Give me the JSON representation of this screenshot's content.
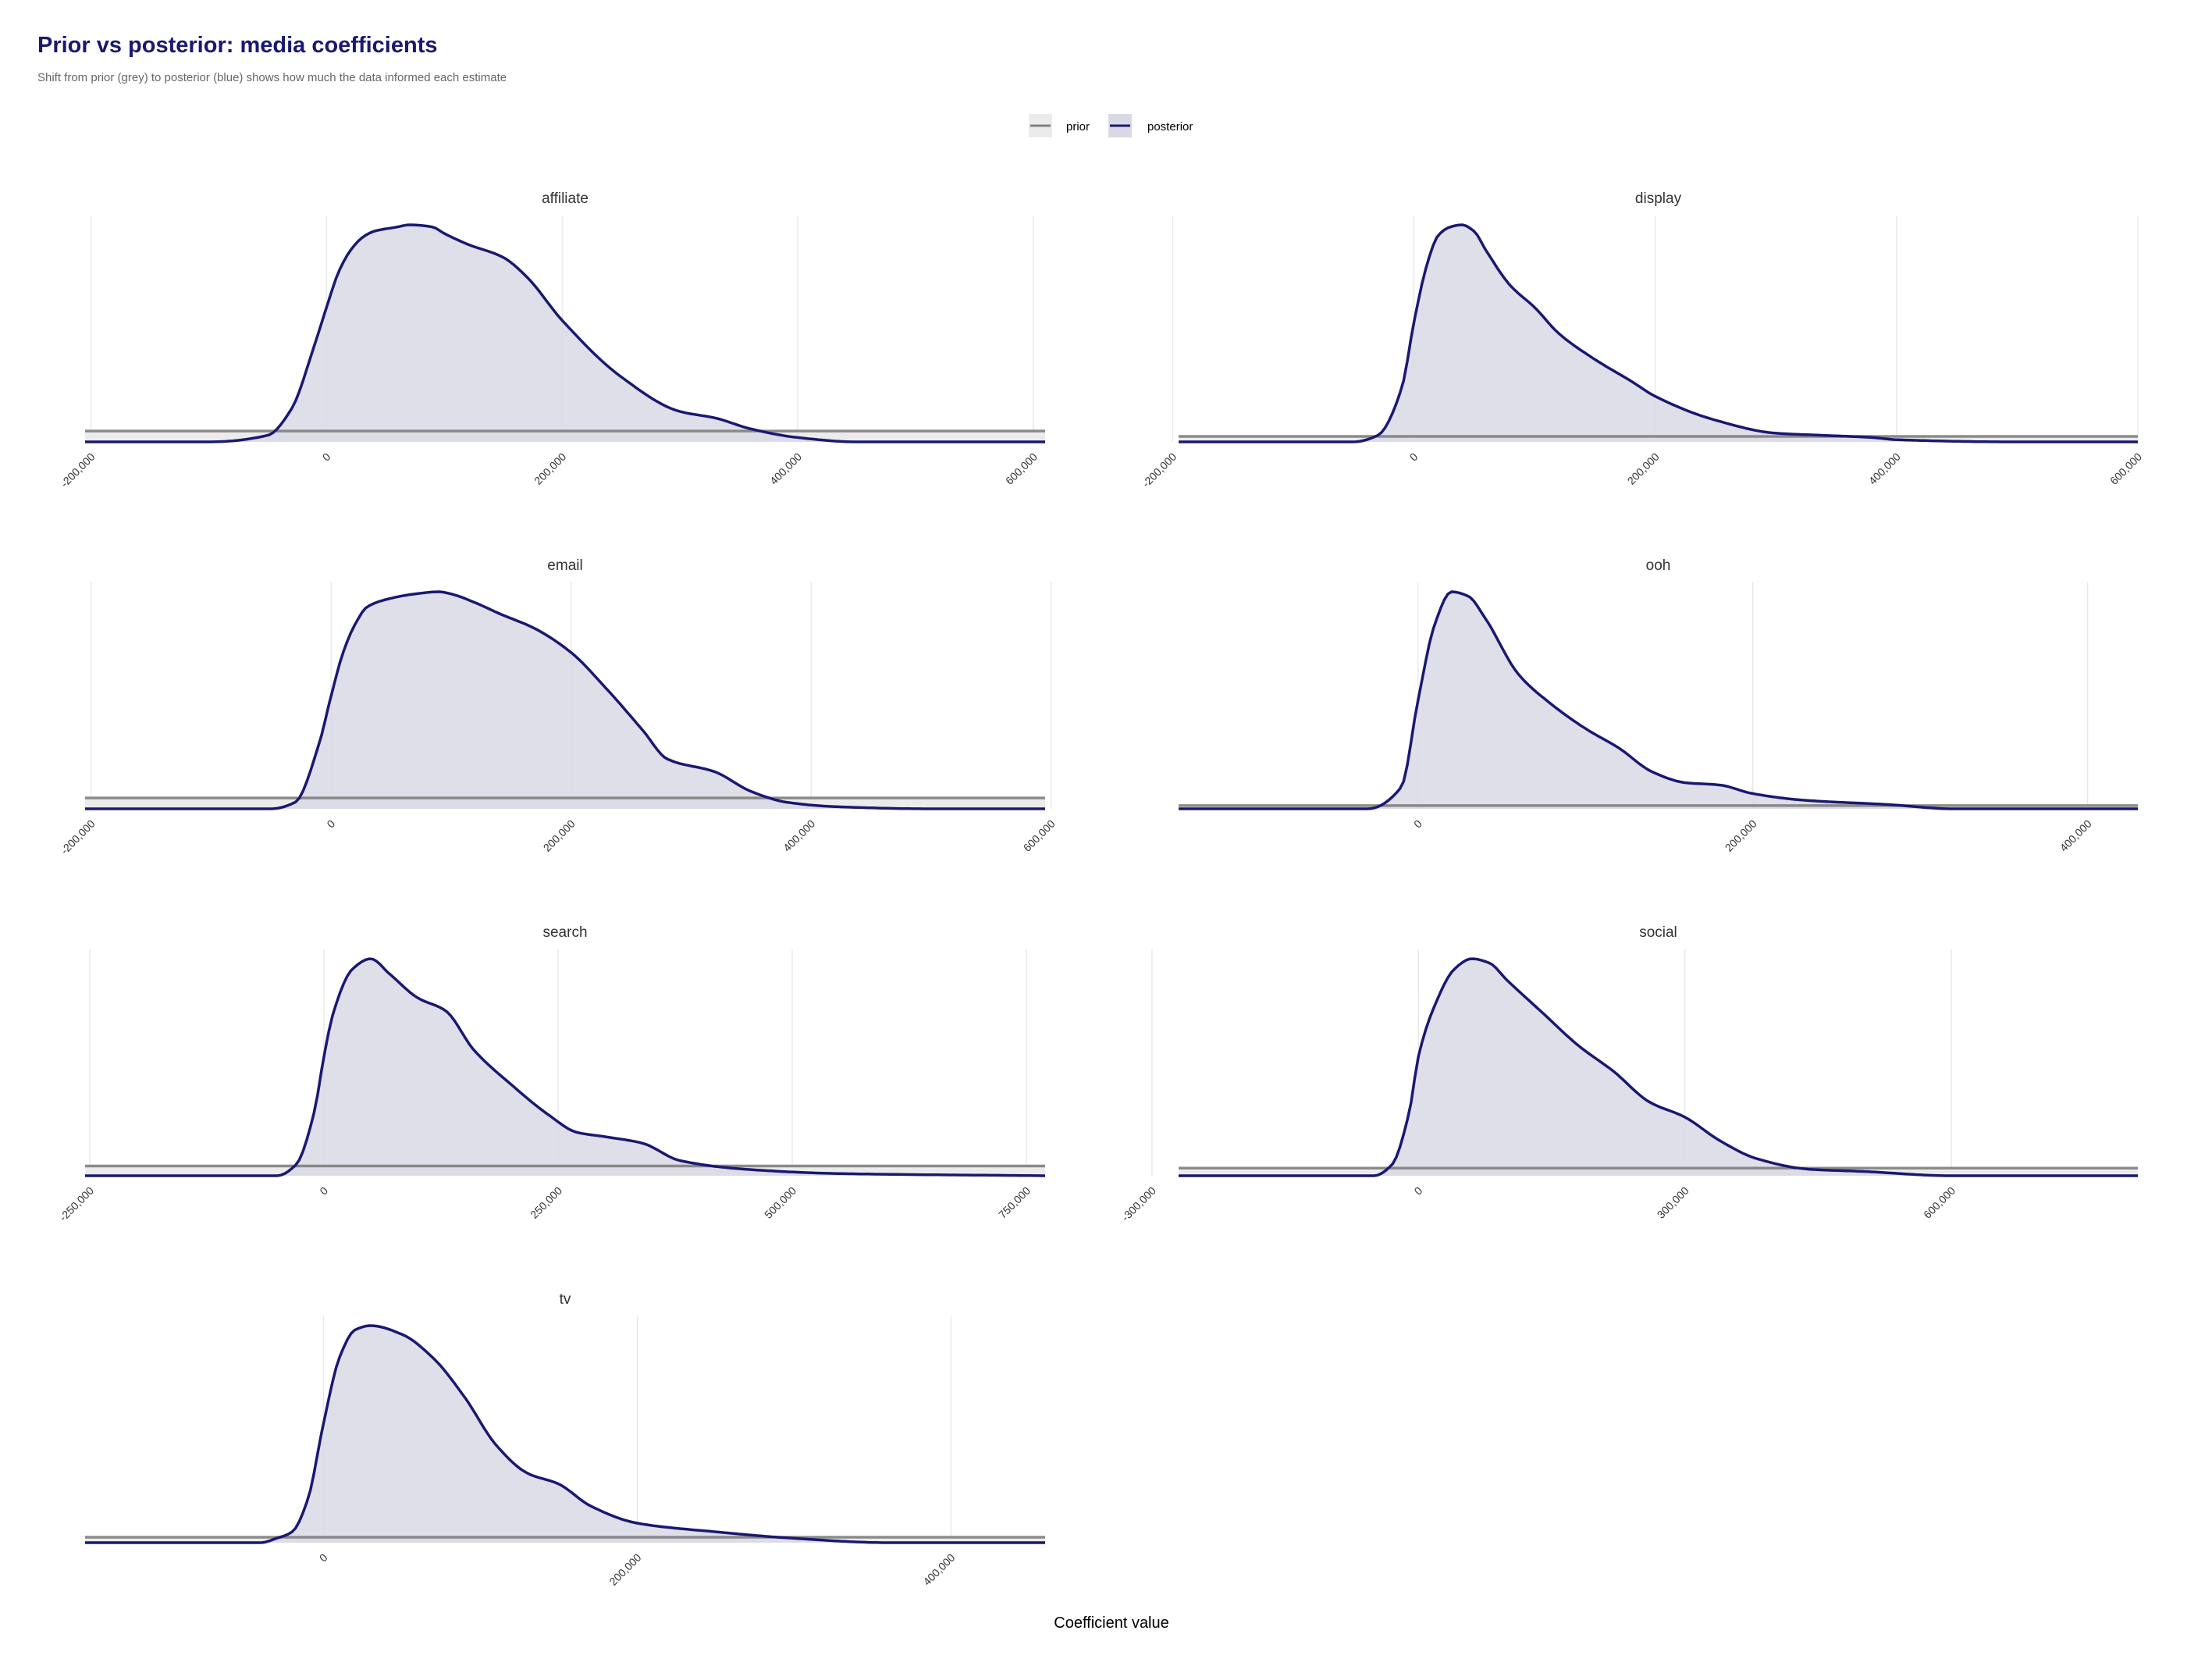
{
  "title": "Prior vs posterior: media coefficients",
  "subtitle": "Shift from prior (grey) to posterior (blue) shows how much the data informed each estimate",
  "colors": {
    "title": "#191970",
    "posterior_line": "#191970",
    "posterior_fill": "#d9d9e6",
    "prior_line": "#808080",
    "prior_fill": "#ebebeb",
    "grid": "#e6e6e6",
    "strip_text": "#333333",
    "tick_text": "#333333",
    "subtitle": "#666666"
  },
  "legend": {
    "position": "top",
    "items": [
      {
        "label": "prior",
        "color": "#808080",
        "fill": "#ebebeb"
      },
      {
        "label": "posterior",
        "color": "#191970",
        "fill": "#d9d9e6"
      }
    ]
  },
  "chart_data": {
    "type": "area",
    "x_label": "Coefficient value",
    "grid": true,
    "panels": [
      {
        "name": "affiliate",
        "xlim": [
          -205000,
          610000
        ],
        "ticks": [
          -200000,
          0,
          200000,
          400000,
          600000
        ],
        "tick_labels": [
          "-200,000",
          "0",
          "200,000",
          "400,000",
          "600,000"
        ],
        "prior_level": 0.05,
        "posterior": {
          "x": [
            -205000,
            -100000,
            -50000,
            -30000,
            -10000,
            0,
            10000,
            20000,
            30000,
            40000,
            60000,
            70000,
            90000,
            100000,
            120000,
            150000,
            170000,
            200000,
            250000,
            300000,
            330000,
            360000,
            400000,
            450000,
            500000,
            550000,
            610000
          ],
          "density": [
            0.0,
            0.0,
            0.03,
            0.15,
            0.45,
            0.62,
            0.78,
            0.88,
            0.94,
            0.97,
            0.99,
            1.0,
            0.99,
            0.96,
            0.91,
            0.85,
            0.76,
            0.56,
            0.3,
            0.14,
            0.11,
            0.06,
            0.02,
            0.0,
            0.0,
            0.0,
            0.0
          ]
        }
      },
      {
        "name": "display",
        "xlim": [
          -195000,
          600000
        ],
        "ticks": [
          -200000,
          0,
          200000,
          400000,
          600000
        ],
        "tick_labels": [
          "-200,000",
          "0",
          "200,000",
          "400,000",
          "600,000"
        ],
        "prior_level": 0.025,
        "posterior": {
          "x": [
            -195000,
            -50000,
            -30000,
            -10000,
            0,
            10000,
            20000,
            30000,
            40000,
            50000,
            60000,
            80000,
            100000,
            120000,
            150000,
            180000,
            200000,
            250000,
            300000,
            340000,
            380000,
            400000,
            500000,
            600000
          ],
          "density": [
            0.0,
            0.0,
            0.03,
            0.25,
            0.55,
            0.8,
            0.95,
            0.99,
            1.0,
            0.97,
            0.88,
            0.72,
            0.62,
            0.5,
            0.38,
            0.28,
            0.21,
            0.1,
            0.04,
            0.03,
            0.02,
            0.01,
            0.0,
            0.0
          ]
        }
      },
      {
        "name": "email",
        "xlim": [
          -205000,
          595000
        ],
        "ticks": [
          -200000,
          0,
          200000,
          400000,
          600000
        ],
        "tick_labels": [
          "-200,000",
          "0",
          "200,000",
          "400,000",
          "600,000"
        ],
        "prior_level": 0.05,
        "posterior": {
          "x": [
            -205000,
            -50000,
            -30000,
            -10000,
            0,
            10000,
            20000,
            30000,
            50000,
            70000,
            90000,
            100000,
            120000,
            140000,
            170000,
            200000,
            230000,
            260000,
            280000,
            320000,
            350000,
            380000,
            420000,
            500000,
            595000
          ],
          "density": [
            0.0,
            0.0,
            0.03,
            0.3,
            0.52,
            0.72,
            0.85,
            0.93,
            0.97,
            0.99,
            1.0,
            0.99,
            0.95,
            0.9,
            0.83,
            0.72,
            0.55,
            0.36,
            0.23,
            0.17,
            0.08,
            0.03,
            0.01,
            0.0,
            0.0
          ]
        }
      },
      {
        "name": "ooh",
        "xlim": [
          -143000,
          430000
        ],
        "ticks": [
          0,
          200000,
          400000
        ],
        "tick_labels": [
          "0",
          "200,000",
          "400,000"
        ],
        "prior_level": 0.015,
        "posterior": {
          "x": [
            -143000,
            -30000,
            -10000,
            0,
            10000,
            20000,
            30000,
            40000,
            60000,
            80000,
            100000,
            120000,
            140000,
            160000,
            180000,
            200000,
            230000,
            280000,
            320000,
            430000
          ],
          "density": [
            0.0,
            0.0,
            0.1,
            0.5,
            0.85,
            1.0,
            0.98,
            0.88,
            0.62,
            0.48,
            0.37,
            0.28,
            0.17,
            0.12,
            0.11,
            0.07,
            0.04,
            0.02,
            0.0,
            0.0
          ]
        }
      },
      {
        "name": "search",
        "xlim": [
          -255000,
          770000
        ],
        "ticks": [
          -250000,
          0,
          250000,
          500000,
          750000
        ],
        "tick_labels": [
          "-250,000",
          "0",
          "250,000",
          "500,000",
          "750,000"
        ],
        "prior_level": 0.045,
        "posterior": {
          "x": [
            -255000,
            -50000,
            -30000,
            -10000,
            0,
            10000,
            30000,
            50000,
            70000,
            100000,
            130000,
            160000,
            200000,
            240000,
            270000,
            300000,
            340000,
            380000,
            450000,
            550000,
            770000
          ],
          "density": [
            0.0,
            0.0,
            0.05,
            0.3,
            0.55,
            0.75,
            0.95,
            1.0,
            0.93,
            0.82,
            0.76,
            0.58,
            0.42,
            0.28,
            0.2,
            0.18,
            0.15,
            0.07,
            0.03,
            0.01,
            0.0
          ]
        }
      },
      {
        "name": "social",
        "xlim": [
          -270000,
          810000
        ],
        "ticks": [
          -300000,
          0,
          300000,
          600000
        ],
        "tick_labels": [
          "-300,000",
          "0",
          "300,000",
          "600,000"
        ],
        "prior_level": 0.035,
        "posterior": {
          "x": [
            -270000,
            -50000,
            -30000,
            -10000,
            0,
            20000,
            40000,
            60000,
            80000,
            100000,
            140000,
            180000,
            220000,
            260000,
            300000,
            340000,
            380000,
            440000,
            500000,
            600000,
            810000
          ],
          "density": [
            0.0,
            0.0,
            0.05,
            0.3,
            0.55,
            0.8,
            0.95,
            1.0,
            0.98,
            0.9,
            0.75,
            0.6,
            0.48,
            0.34,
            0.27,
            0.16,
            0.08,
            0.03,
            0.02,
            0.0,
            0.0
          ]
        }
      },
      {
        "name": "tv",
        "xlim": [
          -152000,
          460000
        ],
        "ticks": [
          0,
          200000,
          400000
        ],
        "tick_labels": [
          "0",
          "200,000",
          "400,000"
        ],
        "prior_level": 0.025,
        "posterior": {
          "x": [
            -152000,
            -40000,
            -30000,
            -20000,
            -10000,
            0,
            10000,
            20000,
            30000,
            50000,
            70000,
            90000,
            110000,
            130000,
            150000,
            170000,
            200000,
            250000,
            300000,
            360000,
            460000
          ],
          "density": [
            0.0,
            0.0,
            0.02,
            0.05,
            0.2,
            0.55,
            0.85,
            0.98,
            1.0,
            0.96,
            0.85,
            0.67,
            0.45,
            0.32,
            0.27,
            0.17,
            0.09,
            0.05,
            0.02,
            0.0,
            0.0
          ]
        }
      }
    ]
  }
}
